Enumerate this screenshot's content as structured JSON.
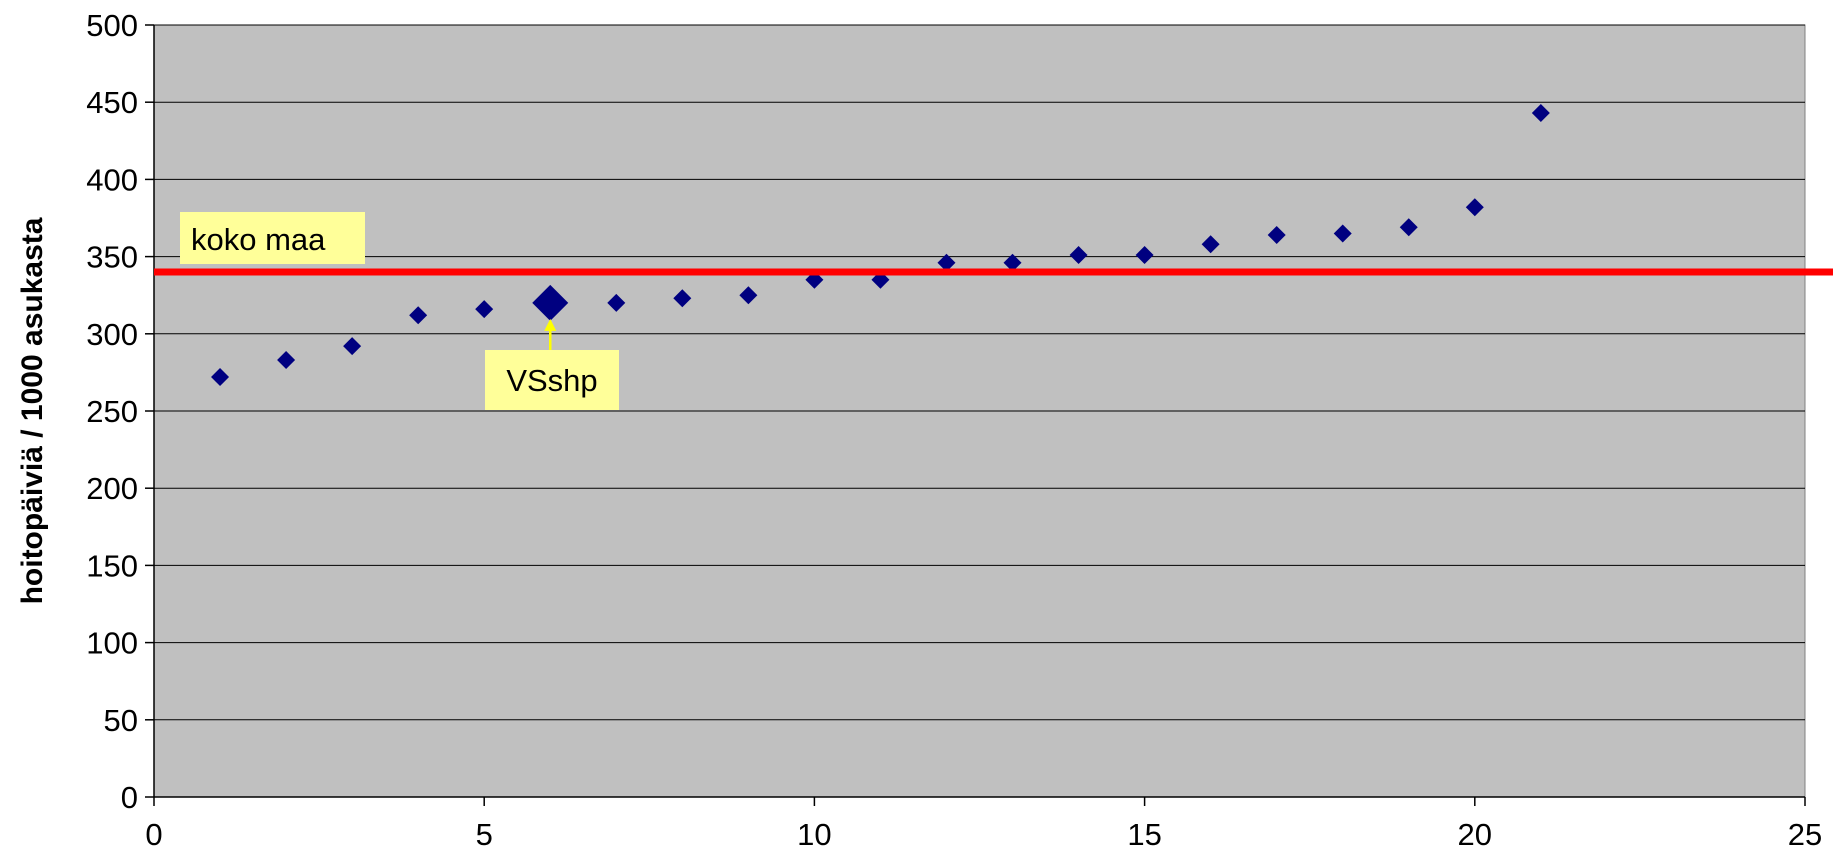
{
  "chart_data": {
    "type": "scatter",
    "title": "",
    "xlabel": "",
    "ylabel": "hoitopäiviä / 1000 asukasta",
    "xlim": [
      0,
      25
    ],
    "ylim": [
      0,
      500
    ],
    "x_ticks": [
      0,
      5,
      10,
      15,
      20,
      25
    ],
    "y_ticks": [
      0,
      50,
      100,
      150,
      200,
      250,
      300,
      350,
      400,
      450,
      500
    ],
    "grid": "horizontal",
    "colors": {
      "plot_area": "#c0c0c0",
      "marker": "#000080",
      "reference_line": "#ff0000",
      "label_box": "#ffff99",
      "arrow": "#ffff00"
    },
    "series": [
      {
        "x": [
          1,
          2,
          3,
          4,
          5,
          6,
          7,
          8,
          9,
          10,
          11,
          12,
          13,
          14,
          15,
          16,
          17,
          18,
          19,
          20,
          21
        ],
        "y": [
          272,
          283,
          292,
          312,
          316,
          320,
          320,
          323,
          325,
          335,
          335,
          346,
          346,
          351,
          351,
          358,
          364,
          365,
          369,
          382,
          443
        ]
      }
    ],
    "highlight": {
      "x": 6,
      "y": 320,
      "label": "VSshp"
    },
    "reference_line": {
      "y": 340,
      "label": "koko maa"
    }
  }
}
